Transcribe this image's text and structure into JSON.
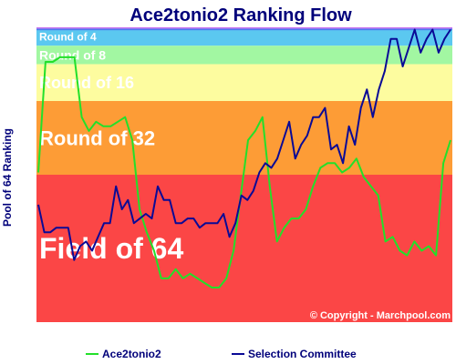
{
  "chart_data": {
    "type": "line",
    "title": "Ace2tonio2 Ranking Flow",
    "ylabel": "Pool of 64 Ranking",
    "copyright": "© Copyright - Marchpool.com",
    "bands": [
      {
        "label": "Round of 4",
        "from": 1,
        "to": 4,
        "color": "#5bc8f0"
      },
      {
        "label": "Round of 8",
        "from": 5,
        "to": 8,
        "color": "#a2f7a2"
      },
      {
        "label": "Round of 16",
        "from": 9,
        "to": 16,
        "color": "#fdfc9f"
      },
      {
        "label": "Round of 32",
        "from": 17,
        "to": 32,
        "color": "#fd9c36"
      },
      {
        "label": "Field of 64",
        "from": 33,
        "to": 64,
        "color": "#fb4646"
      }
    ],
    "series": [
      {
        "name": "Ace2tonio2",
        "color": "#22e02a",
        "values": [
          32,
          8,
          8,
          7,
          7,
          7,
          20,
          23,
          21,
          22,
          22,
          21,
          20,
          25,
          40,
          45,
          49,
          55,
          55,
          53,
          55,
          54,
          55,
          56,
          57,
          57,
          55,
          49,
          37,
          25,
          23,
          20,
          35,
          47,
          44,
          42,
          42,
          40,
          35,
          31,
          30,
          30,
          32,
          31,
          29,
          33,
          35,
          37,
          47,
          46,
          49,
          50,
          47,
          49,
          48,
          50,
          30,
          25
        ]
      },
      {
        "name": "Selection Committee",
        "color": "#0a0a96",
        "values": [
          39,
          45,
          45,
          44,
          44,
          44,
          51,
          48,
          47,
          49,
          46,
          43,
          43,
          35,
          40,
          38,
          43,
          42,
          41,
          42,
          35,
          38,
          38,
          43,
          43,
          42,
          42,
          44,
          43,
          43,
          43,
          41,
          46,
          43,
          37,
          38,
          36,
          32,
          30,
          31,
          29,
          25,
          21,
          29,
          26,
          24,
          20,
          20,
          18,
          27,
          26,
          30,
          22,
          26,
          18,
          14,
          20,
          14,
          10,
          3,
          3,
          9,
          5,
          1,
          6,
          3,
          1,
          6,
          3,
          1
        ]
      }
    ]
  }
}
